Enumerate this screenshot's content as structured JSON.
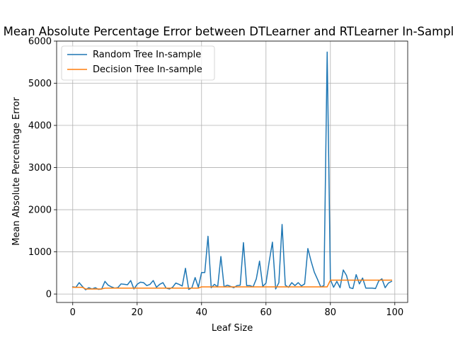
{
  "chart_data": {
    "type": "line",
    "title": "Mean Absolute Percentage Error between DTLearner and RTLearner In-Sample",
    "xlabel": "Leaf Size",
    "ylabel": "Mean Absolute Percentage Error",
    "xlim": [
      -5,
      104
    ],
    "ylim": [
      -200,
      6000
    ],
    "xticks": [
      0,
      20,
      40,
      60,
      80,
      100
    ],
    "yticks": [
      0,
      1000,
      2000,
      3000,
      4000,
      5000,
      6000
    ],
    "grid": true,
    "legend_position": "upper-left",
    "x": [
      0,
      1,
      2,
      3,
      4,
      5,
      6,
      7,
      8,
      9,
      10,
      11,
      12,
      13,
      14,
      15,
      16,
      17,
      18,
      19,
      20,
      21,
      22,
      23,
      24,
      25,
      26,
      27,
      28,
      29,
      30,
      31,
      32,
      33,
      34,
      35,
      36,
      37,
      38,
      39,
      40,
      41,
      42,
      43,
      44,
      45,
      46,
      47,
      48,
      49,
      50,
      51,
      52,
      53,
      54,
      55,
      56,
      57,
      58,
      59,
      60,
      61,
      62,
      63,
      64,
      65,
      66,
      67,
      68,
      69,
      70,
      71,
      72,
      73,
      74,
      75,
      76,
      77,
      78,
      79,
      80,
      81,
      82,
      83,
      84,
      85,
      86,
      87,
      88,
      89,
      90,
      91,
      92,
      93,
      94,
      95,
      96,
      97,
      98,
      99
    ],
    "series": [
      {
        "name": "Random Tree In-sample",
        "color": "#1f77b4",
        "values": [
          170,
          160,
          270,
          180,
          100,
          150,
          120,
          150,
          110,
          120,
          300,
          210,
          170,
          140,
          150,
          240,
          230,
          220,
          320,
          120,
          230,
          280,
          270,
          200,
          230,
          320,
          160,
          230,
          270,
          140,
          120,
          160,
          260,
          230,
          190,
          610,
          110,
          150,
          390,
          160,
          510,
          510,
          1370,
          150,
          230,
          170,
          890,
          170,
          210,
          180,
          150,
          200,
          210,
          1220,
          200,
          200,
          170,
          360,
          780,
          180,
          260,
          770,
          1230,
          120,
          270,
          1650,
          210,
          160,
          270,
          200,
          270,
          190,
          240,
          1080,
          780,
          520,
          350,
          170,
          200,
          5740,
          340,
          160,
          300,
          150,
          570,
          440,
          150,
          130,
          460,
          240,
          380,
          140,
          140,
          140,
          130,
          310,
          360,
          150,
          260,
          300
        ],
        "line_width": 1.5
      },
      {
        "name": "Decision Tree In-sample",
        "color": "#ff7f0e",
        "values": [
          160,
          160,
          160,
          160,
          120,
          120,
          120,
          120,
          120,
          120,
          140,
          140,
          140,
          140,
          140,
          140,
          140,
          140,
          140,
          140,
          140,
          140,
          140,
          140,
          140,
          140,
          140,
          140,
          140,
          140,
          140,
          140,
          140,
          140,
          140,
          140,
          140,
          140,
          140,
          140,
          170,
          170,
          170,
          170,
          170,
          170,
          170,
          170,
          170,
          170,
          170,
          170,
          170,
          170,
          170,
          170,
          170,
          170,
          170,
          170,
          170,
          170,
          170,
          170,
          170,
          170,
          170,
          170,
          170,
          170,
          170,
          170,
          170,
          170,
          170,
          170,
          170,
          170,
          170,
          170,
          330,
          330,
          330,
          330,
          330,
          330,
          330,
          330,
          330,
          330,
          330,
          330,
          330,
          330,
          330,
          330,
          330,
          330,
          330,
          330
        ],
        "line_width": 1.5
      }
    ]
  }
}
